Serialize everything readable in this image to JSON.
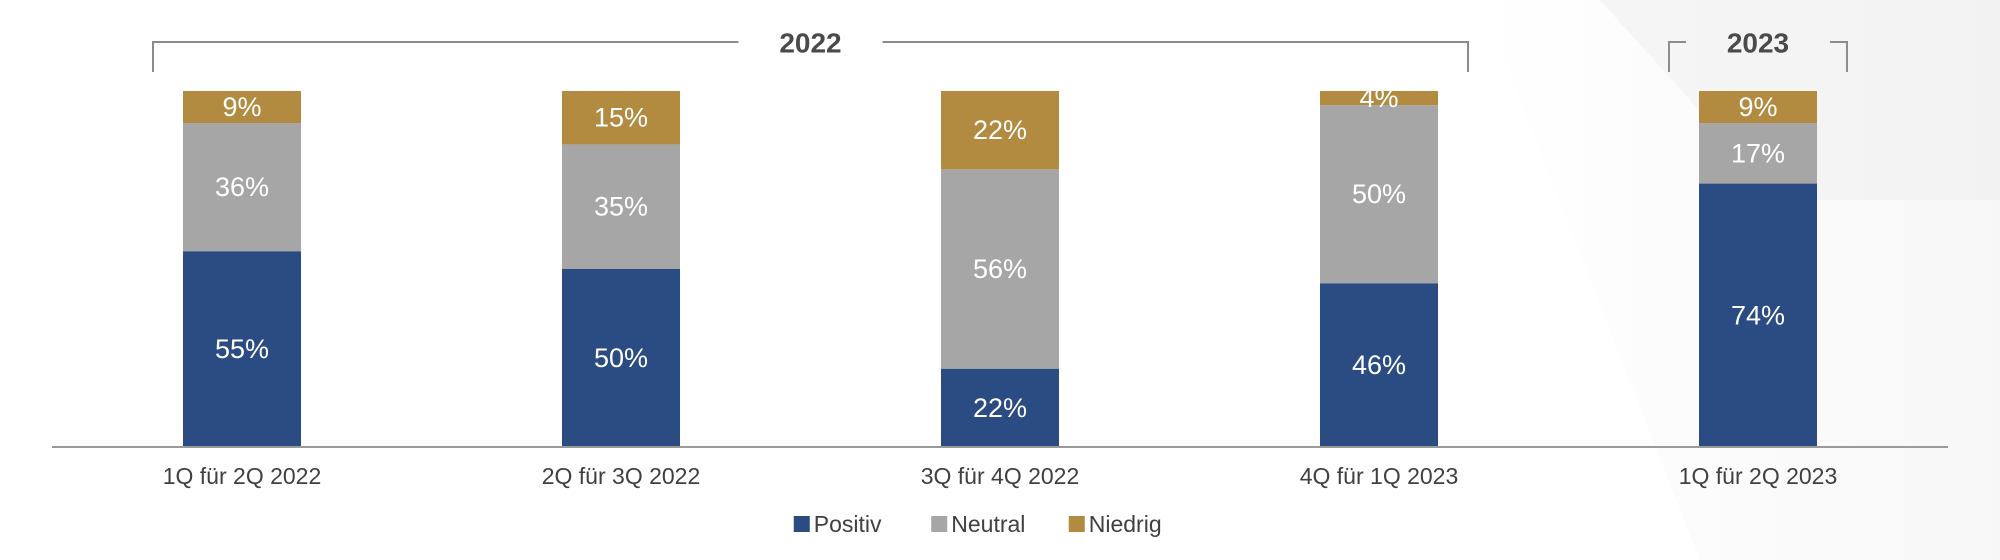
{
  "chart_data": {
    "type": "bar",
    "stacked": true,
    "normalized": true,
    "categories": [
      "1Q für 2Q 2022",
      "2Q für 3Q 2022",
      "3Q für 4Q 2022",
      "4Q für 1Q 2023",
      "1Q für 2Q 2023"
    ],
    "series": [
      {
        "name": "Positiv",
        "color": "#2b4c82",
        "values": [
          55,
          50,
          22,
          46,
          74
        ]
      },
      {
        "name": "Neutral",
        "color": "#a6a6a6",
        "values": [
          36,
          35,
          56,
          50,
          17
        ]
      },
      {
        "name": "Niedrig",
        "color": "#b28b40",
        "values": [
          9,
          15,
          22,
          4,
          9
        ]
      }
    ],
    "value_suffix": "%",
    "ylim": [
      0,
      100
    ],
    "groups": [
      {
        "label": "2022",
        "from": 0,
        "to": 3
      },
      {
        "label": "2023",
        "from": 4,
        "to": 4
      }
    ],
    "legend_position": "bottom-center",
    "grid": false
  }
}
